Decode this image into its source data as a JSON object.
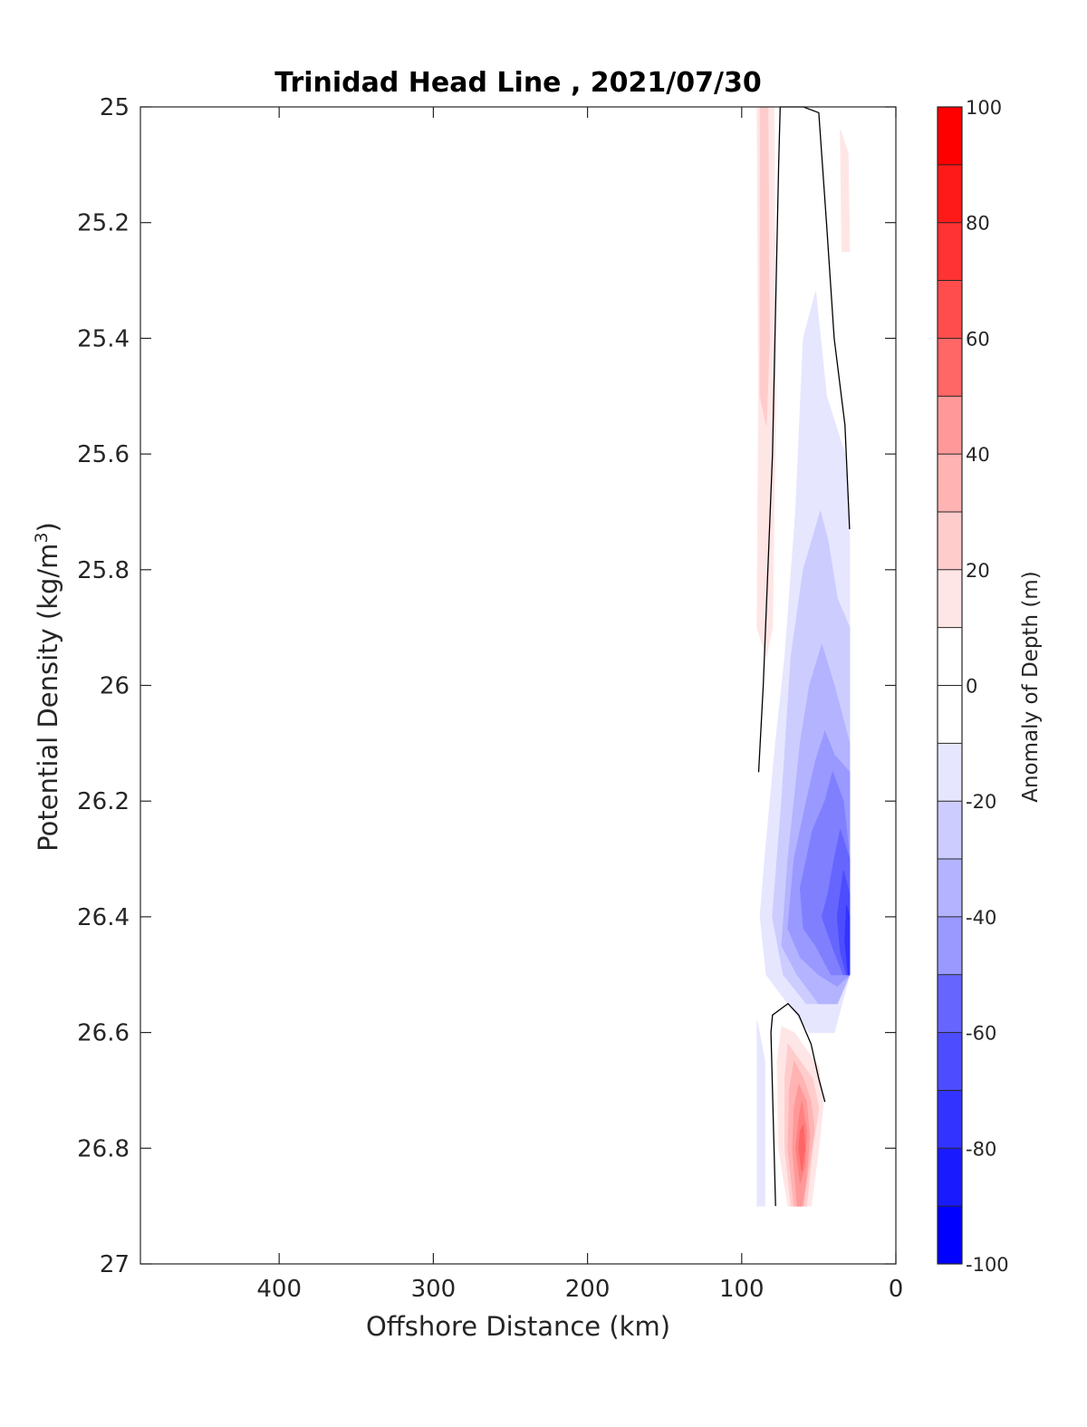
{
  "chart_data": {
    "type": "contourf",
    "title": "Trinidad Head Line , 2021/07/30",
    "xlabel": "Offshore Distance (km)",
    "ylabel_main": "Potential Density (kg/m",
    "ylabel_sup": "3",
    "ylabel_close": ")",
    "colorbar_label": "Anomaly of Depth (m)",
    "xlim": [
      490,
      0
    ],
    "ylim": [
      27,
      25
    ],
    "y_reversed": true,
    "x_reversed": true,
    "x_ticks": [
      400,
      300,
      200,
      100,
      0
    ],
    "x_tick_labels": [
      "400",
      "300",
      "200",
      "100",
      "0"
    ],
    "y_ticks": [
      25,
      25.2,
      25.4,
      25.6,
      25.8,
      26,
      26.2,
      26.4,
      26.6,
      26.8,
      27
    ],
    "y_tick_labels": [
      "25",
      "25.2",
      "25.4",
      "25.6",
      "25.8",
      "26",
      "26.2",
      "26.4",
      "26.6",
      "26.8",
      "27"
    ],
    "colorbar": {
      "range": [
        -100,
        100
      ],
      "levels": [
        -100,
        -90,
        -80,
        -70,
        -60,
        -50,
        -40,
        -30,
        -20,
        -10,
        0,
        10,
        20,
        30,
        40,
        50,
        60,
        70,
        80,
        90,
        100
      ],
      "tick_values": [
        100,
        80,
        60,
        40,
        20,
        0,
        -20,
        -40,
        -60,
        -80,
        -100
      ],
      "tick_labels": [
        "100",
        "80",
        "60",
        "40",
        "20",
        "0",
        "-20",
        "-40",
        "-60",
        "-80",
        "-100"
      ],
      "colors": [
        "#0000ff",
        "#1a1aff",
        "#3333ff",
        "#4d4dff",
        "#6666ff",
        "#8080ff",
        "#9999ff",
        "#b3b3ff",
        "#ccccff",
        "#e6e6ff",
        "#ffffff",
        "#ffffff",
        "#ffe6e6",
        "#ffcccc",
        "#ffb3b3",
        "#ff9999",
        "#ff8080",
        "#ff6666",
        "#ff4d4d",
        "#ff3333",
        "#ff1a1a",
        "#ff0000"
      ]
    },
    "regions": [
      {
        "level": 15,
        "color": "#ffe6e6",
        "points": [
          [
            90,
            25
          ],
          [
            79,
            25
          ],
          [
            78,
            25.5
          ],
          [
            80,
            25.9
          ],
          [
            84,
            25.95
          ],
          [
            90,
            25.9
          ],
          [
            89,
            25.5
          ]
        ]
      },
      {
        "level": 15,
        "color": "#ffe6e6",
        "points": [
          [
            36,
            25.04
          ],
          [
            31,
            25.08
          ],
          [
            30,
            25.25
          ],
          [
            35,
            25.25
          ]
        ]
      },
      {
        "level": 25,
        "color": "#ffcccc",
        "points": [
          [
            88,
            25
          ],
          [
            83,
            25
          ],
          [
            82,
            25.4
          ],
          [
            84,
            25.55
          ],
          [
            88,
            25.5
          ],
          [
            88,
            25.2
          ]
        ]
      },
      {
        "level": -15,
        "color": "#e6e6ff",
        "points": [
          [
            52,
            25.32
          ],
          [
            60,
            25.4
          ],
          [
            65,
            25.7
          ],
          [
            72,
            25.95
          ],
          [
            78,
            26.1
          ],
          [
            85,
            26.3
          ],
          [
            88,
            26.4
          ],
          [
            84,
            26.5
          ],
          [
            70,
            26.55
          ],
          [
            56,
            26.6
          ],
          [
            40,
            26.6
          ],
          [
            30,
            26.5
          ],
          [
            30,
            25.75
          ],
          [
            33,
            25.6
          ],
          [
            45,
            25.5
          ]
        ]
      },
      {
        "level": -25,
        "color": "#ccccff",
        "points": [
          [
            49,
            25.7
          ],
          [
            60,
            25.8
          ],
          [
            68,
            25.95
          ],
          [
            74,
            26.2
          ],
          [
            80,
            26.4
          ],
          [
            73,
            26.5
          ],
          [
            58,
            26.55
          ],
          [
            40,
            26.55
          ],
          [
            30,
            26.5
          ],
          [
            30,
            25.9
          ],
          [
            38,
            25.85
          ],
          [
            44,
            25.75
          ]
        ]
      },
      {
        "level": -35,
        "color": "#b3b3ff",
        "points": [
          [
            48,
            25.93
          ],
          [
            56,
            26.0
          ],
          [
            62,
            26.1
          ],
          [
            70,
            26.3
          ],
          [
            74,
            26.45
          ],
          [
            64,
            26.5
          ],
          [
            50,
            26.55
          ],
          [
            38,
            26.55
          ],
          [
            30,
            26.5
          ],
          [
            30,
            26.1
          ],
          [
            40,
            26.0
          ]
        ]
      },
      {
        "level": -45,
        "color": "#9999ff",
        "points": [
          [
            46,
            26.08
          ],
          [
            52,
            26.13
          ],
          [
            58,
            26.2
          ],
          [
            66,
            26.3
          ],
          [
            70,
            26.42
          ],
          [
            62,
            26.47
          ],
          [
            50,
            26.5
          ],
          [
            38,
            26.52
          ],
          [
            30,
            26.5
          ],
          [
            30,
            26.15
          ],
          [
            40,
            26.12
          ]
        ]
      },
      {
        "level": -55,
        "color": "#8080ff",
        "points": [
          [
            41,
            26.15
          ],
          [
            46,
            26.2
          ],
          [
            54,
            26.25
          ],
          [
            62,
            26.35
          ],
          [
            60,
            26.42
          ],
          [
            52,
            26.45
          ],
          [
            42,
            26.5
          ],
          [
            32,
            26.5
          ],
          [
            30,
            26.3
          ],
          [
            34,
            26.2
          ]
        ]
      },
      {
        "level": -65,
        "color": "#6666ff",
        "points": [
          [
            36,
            26.25
          ],
          [
            40,
            26.3
          ],
          [
            44,
            26.36
          ],
          [
            48,
            26.4
          ],
          [
            40,
            26.46
          ],
          [
            34,
            26.5
          ],
          [
            30,
            26.5
          ],
          [
            30,
            26.3
          ]
        ]
      },
      {
        "level": -75,
        "color": "#4d4dff",
        "points": [
          [
            34,
            26.32
          ],
          [
            38,
            26.4
          ],
          [
            36,
            26.46
          ],
          [
            32,
            26.5
          ],
          [
            30,
            26.5
          ],
          [
            30,
            26.36
          ]
        ]
      },
      {
        "level": -85,
        "color": "#3333ff",
        "points": [
          [
            32,
            26.38
          ],
          [
            33,
            26.44
          ],
          [
            31,
            26.5
          ],
          [
            30,
            26.5
          ],
          [
            30,
            26.4
          ]
        ]
      },
      {
        "level": -15,
        "color": "#e6e6ff",
        "points": [
          [
            90,
            26.58
          ],
          [
            85,
            26.65
          ],
          [
            85,
            26.9
          ],
          [
            90,
            26.9
          ]
        ]
      },
      {
        "level": 15,
        "color": "#ffe6e6",
        "points": [
          [
            74,
            26.59
          ],
          [
            66,
            26.6
          ],
          [
            58,
            26.63
          ],
          [
            50,
            26.66
          ],
          [
            47,
            26.72
          ],
          [
            50,
            26.8
          ],
          [
            55,
            26.9
          ],
          [
            70,
            26.9
          ],
          [
            76,
            26.8
          ],
          [
            77,
            26.65
          ]
        ]
      },
      {
        "level": 25,
        "color": "#ffcccc",
        "points": [
          [
            70,
            26.62
          ],
          [
            62,
            26.65
          ],
          [
            54,
            26.68
          ],
          [
            50,
            26.73
          ],
          [
            54,
            26.8
          ],
          [
            58,
            26.9
          ],
          [
            68,
            26.9
          ],
          [
            72,
            26.8
          ],
          [
            72,
            26.68
          ]
        ]
      },
      {
        "level": 35,
        "color": "#ffb3b3",
        "points": [
          [
            66,
            26.65
          ],
          [
            60,
            26.68
          ],
          [
            55,
            26.72
          ],
          [
            53,
            26.77
          ],
          [
            57,
            26.84
          ],
          [
            60,
            26.9
          ],
          [
            66,
            26.9
          ],
          [
            70,
            26.8
          ],
          [
            69,
            26.7
          ]
        ]
      },
      {
        "level": 45,
        "color": "#ff9999",
        "points": [
          [
            63,
            26.69
          ],
          [
            58,
            26.72
          ],
          [
            56,
            26.78
          ],
          [
            58,
            26.85
          ],
          [
            61,
            26.9
          ],
          [
            64,
            26.9
          ],
          [
            67,
            26.8
          ],
          [
            66,
            26.73
          ]
        ]
      },
      {
        "level": 55,
        "color": "#ff8080",
        "points": [
          [
            61,
            26.72
          ],
          [
            58,
            26.77
          ],
          [
            59,
            26.83
          ],
          [
            62,
            26.86
          ],
          [
            65,
            26.8
          ],
          [
            63,
            26.75
          ]
        ]
      },
      {
        "level": 65,
        "color": "#ff6666",
        "points": [
          [
            60,
            26.76
          ],
          [
            59,
            26.8
          ],
          [
            61,
            26.84
          ],
          [
            63,
            26.8
          ],
          [
            62,
            26.77
          ]
        ]
      }
    ],
    "zero_contours": [
      {
        "level": 0,
        "points": [
          [
            89,
            26.15
          ],
          [
            86,
            26.0
          ],
          [
            80,
            25.6
          ],
          [
            78,
            25.35
          ],
          [
            76,
            25.1
          ],
          [
            75,
            25.0
          ],
          [
            60,
            25.0
          ],
          [
            50,
            25.01
          ],
          [
            45,
            25.2
          ],
          [
            40,
            25.4
          ],
          [
            33,
            25.55
          ],
          [
            30,
            25.73
          ]
        ]
      },
      {
        "level": 0,
        "points": [
          [
            78,
            26.9
          ],
          [
            79,
            26.8
          ],
          [
            81,
            26.6
          ],
          [
            80,
            26.57
          ],
          [
            70,
            26.55
          ],
          [
            63,
            26.57
          ],
          [
            55,
            26.62
          ],
          [
            50,
            26.68
          ],
          [
            46,
            26.72
          ]
        ]
      }
    ]
  }
}
